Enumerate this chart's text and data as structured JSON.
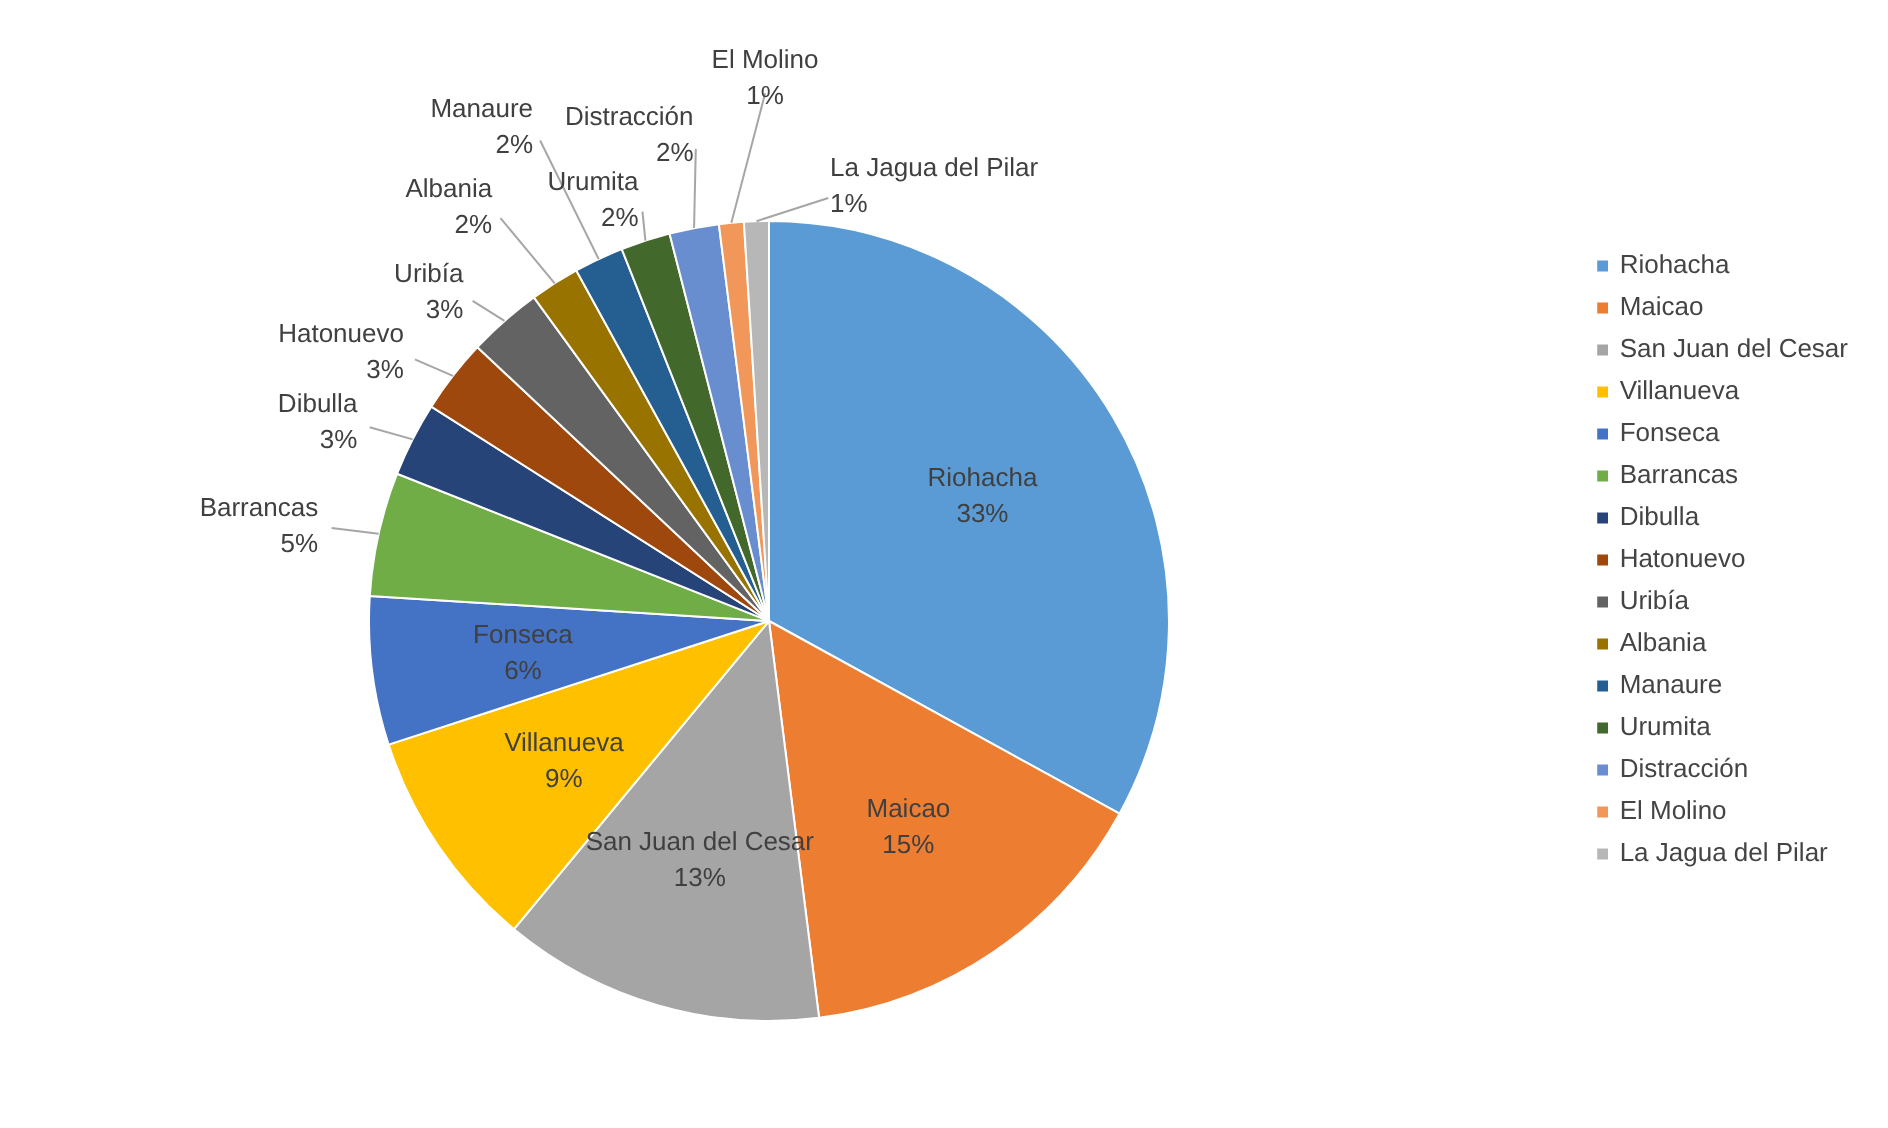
{
  "chart_data": {
    "type": "pie",
    "categories": [
      "Riohacha",
      "Maicao",
      "San Juan del Cesar",
      "Villanueva",
      "Fonseca",
      "Barrancas",
      "Dibulla",
      "Hatonuevo",
      "Uribía",
      "Albania",
      "Manaure",
      "Urumita",
      "Distracción",
      "El Molino",
      "La Jagua del Pilar"
    ],
    "values": [
      33,
      15,
      13,
      9,
      6,
      5,
      3,
      3,
      3,
      2,
      2,
      2,
      2,
      1,
      1
    ],
    "colors": [
      "#5b9bd5",
      "#ed7d31",
      "#a5a5a5",
      "#ffc000",
      "#4472c4",
      "#70ad47",
      "#264478",
      "#9e480e",
      "#636363",
      "#997300",
      "#255e91",
      "#43682b",
      "#698ed0",
      "#f1975a",
      "#b7b7b7"
    ],
    "value_labels": [
      "33%",
      "15%",
      "13%",
      "9%",
      "6%",
      "5%",
      "3%",
      "3%",
      "3%",
      "2%",
      "2%",
      "2%",
      "2%",
      "1%",
      "1%"
    ],
    "legend": "right"
  }
}
